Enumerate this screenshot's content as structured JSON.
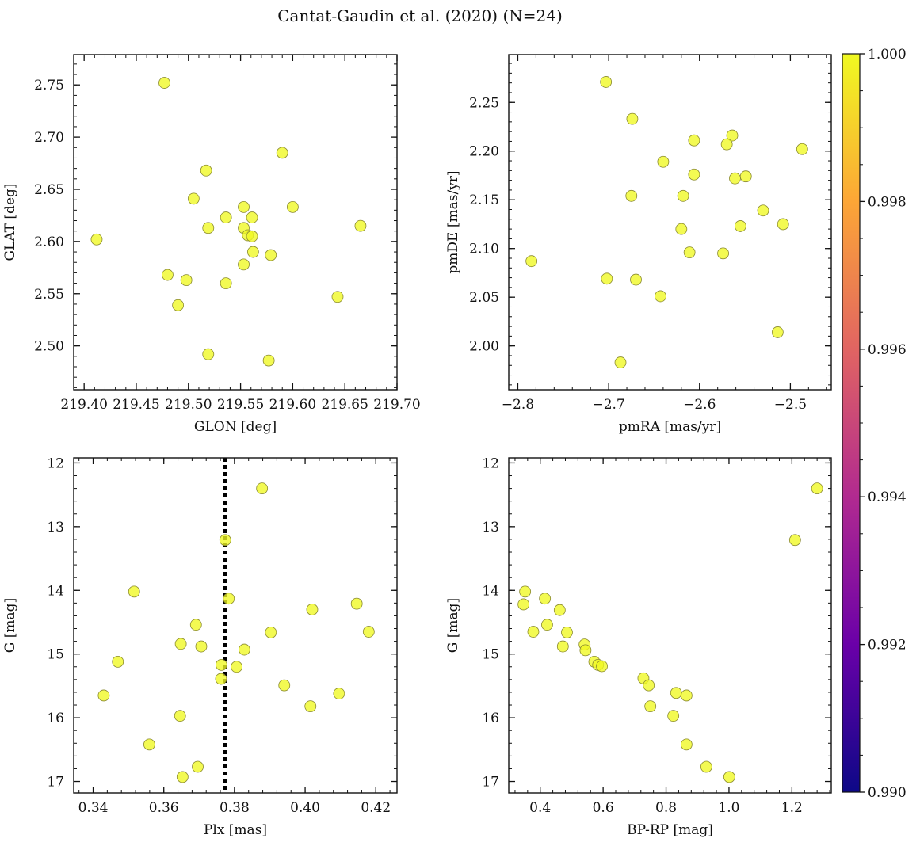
{
  "title": "Cantat-Gaudin et al. (2020) (N=24)",
  "chart_data": [
    {
      "type": "scatter",
      "xlabel": "GLON [deg]",
      "ylabel": "GLAT [deg]",
      "xlim": [
        219.39,
        219.7
      ],
      "ylim": [
        2.458,
        2.779
      ],
      "xticks": [
        "219.40",
        "219.45",
        "219.50",
        "219.55",
        "219.60",
        "219.65",
        "219.70"
      ],
      "yticks": [
        "2.50",
        "2.55",
        "2.60",
        "2.65",
        "2.70",
        "2.75"
      ],
      "points": [
        [
          219.477,
          2.752
        ],
        [
          219.59,
          2.685
        ],
        [
          219.517,
          2.668
        ],
        [
          219.505,
          2.641
        ],
        [
          219.553,
          2.633
        ],
        [
          219.6,
          2.633
        ],
        [
          219.536,
          2.623
        ],
        [
          219.561,
          2.623
        ],
        [
          219.412,
          2.602
        ],
        [
          219.519,
          2.613
        ],
        [
          219.553,
          2.613
        ],
        [
          219.557,
          2.606
        ],
        [
          219.561,
          2.605
        ],
        [
          219.665,
          2.615
        ],
        [
          219.562,
          2.59
        ],
        [
          219.579,
          2.587
        ],
        [
          219.553,
          2.578
        ],
        [
          219.48,
          2.568
        ],
        [
          219.498,
          2.563
        ],
        [
          219.536,
          2.56
        ],
        [
          219.49,
          2.539
        ],
        [
          219.643,
          2.547
        ],
        [
          219.519,
          2.492
        ],
        [
          219.577,
          2.486
        ]
      ]
    },
    {
      "type": "scatter",
      "xlabel": "pmRA [mas/yr]",
      "ylabel": "pmDE [mas/yr]",
      "xlim": [
        -2.81,
        -2.455
      ],
      "ylim": [
        1.955,
        2.299
      ],
      "xticks": [
        "−2.8",
        "−2.7",
        "−2.6",
        "−2.5"
      ],
      "yticks": [
        "2.00",
        "2.05",
        "2.10",
        "2.15",
        "2.20",
        "2.25"
      ],
      "points": [
        [
          -2.703,
          2.271
        ],
        [
          -2.674,
          2.233
        ],
        [
          -2.564,
          2.216
        ],
        [
          -2.606,
          2.211
        ],
        [
          -2.57,
          2.207
        ],
        [
          -2.487,
          2.202
        ],
        [
          -2.64,
          2.189
        ],
        [
          -2.606,
          2.176
        ],
        [
          -2.549,
          2.174
        ],
        [
          -2.561,
          2.172
        ],
        [
          -2.675,
          2.154
        ],
        [
          -2.618,
          2.154
        ],
        [
          -2.53,
          2.139
        ],
        [
          -2.508,
          2.125
        ],
        [
          -2.555,
          2.123
        ],
        [
          -2.62,
          2.12
        ],
        [
          -2.611,
          2.096
        ],
        [
          -2.574,
          2.095
        ],
        [
          -2.785,
          2.087
        ],
        [
          -2.702,
          2.069
        ],
        [
          -2.67,
          2.068
        ],
        [
          -2.643,
          2.051
        ],
        [
          -2.514,
          2.014
        ],
        [
          -2.687,
          1.983
        ]
      ]
    },
    {
      "type": "scatter",
      "xlabel": "Plx [mas]",
      "ylabel": "G [mag]",
      "xlim": [
        0.3345,
        0.426
      ],
      "ylim": [
        17.18,
        11.92
      ],
      "y_inverted": true,
      "vline": 0.3773,
      "xticks": [
        "0.34",
        "0.36",
        "0.38",
        "0.40",
        "0.42"
      ],
      "yticks": [
        "12",
        "13",
        "14",
        "15",
        "16",
        "17"
      ],
      "points": [
        [
          0.3878,
          12.4
        ],
        [
          0.3774,
          13.21
        ],
        [
          0.3516,
          14.02
        ],
        [
          0.3784,
          14.13
        ],
        [
          0.4146,
          14.21
        ],
        [
          0.402,
          14.3
        ],
        [
          0.3691,
          14.54
        ],
        [
          0.418,
          14.65
        ],
        [
          0.3903,
          14.66
        ],
        [
          0.3648,
          14.84
        ],
        [
          0.3706,
          14.88
        ],
        [
          0.3828,
          14.93
        ],
        [
          0.347,
          15.12
        ],
        [
          0.3763,
          15.17
        ],
        [
          0.3806,
          15.2
        ],
        [
          0.3762,
          15.39
        ],
        [
          0.3941,
          15.49
        ],
        [
          0.4096,
          15.62
        ],
        [
          0.343,
          15.65
        ],
        [
          0.4015,
          15.82
        ],
        [
          0.3646,
          15.97
        ],
        [
          0.3559,
          16.42
        ],
        [
          0.3696,
          16.77
        ],
        [
          0.3653,
          16.93
        ]
      ]
    },
    {
      "type": "scatter",
      "xlabel": "BP-RP [mag]",
      "ylabel": "G [mag]",
      "xlim": [
        0.3,
        1.325
      ],
      "ylim": [
        17.18,
        11.92
      ],
      "y_inverted": true,
      "xticks": [
        "0.4",
        "0.6",
        "0.8",
        "1.0",
        "1.2"
      ],
      "yticks": [
        "12",
        "13",
        "14",
        "15",
        "16",
        "17"
      ],
      "points": [
        [
          1.28,
          12.4
        ],
        [
          1.21,
          13.21
        ],
        [
          0.352,
          14.02
        ],
        [
          0.415,
          14.13
        ],
        [
          0.347,
          14.22
        ],
        [
          0.462,
          14.31
        ],
        [
          0.422,
          14.54
        ],
        [
          0.378,
          14.65
        ],
        [
          0.485,
          14.66
        ],
        [
          0.541,
          14.85
        ],
        [
          0.472,
          14.88
        ],
        [
          0.544,
          14.94
        ],
        [
          0.572,
          15.12
        ],
        [
          0.584,
          15.17
        ],
        [
          0.596,
          15.19
        ],
        [
          0.728,
          15.38
        ],
        [
          0.745,
          15.49
        ],
        [
          0.832,
          15.61
        ],
        [
          0.865,
          15.65
        ],
        [
          0.75,
          15.82
        ],
        [
          0.823,
          15.97
        ],
        [
          0.865,
          16.42
        ],
        [
          0.928,
          16.77
        ],
        [
          1.001,
          16.93
        ]
      ]
    }
  ],
  "colorbar": {
    "colormap": "plasma",
    "range": [
      0.99,
      1.0
    ],
    "ticks": [
      "1.000",
      "0.998",
      "0.996",
      "0.994",
      "0.992",
      "0.990"
    ],
    "colors": [
      "#0d0887",
      "#6a00a8",
      "#b12a90",
      "#e16462",
      "#fca636",
      "#f0f921"
    ]
  }
}
